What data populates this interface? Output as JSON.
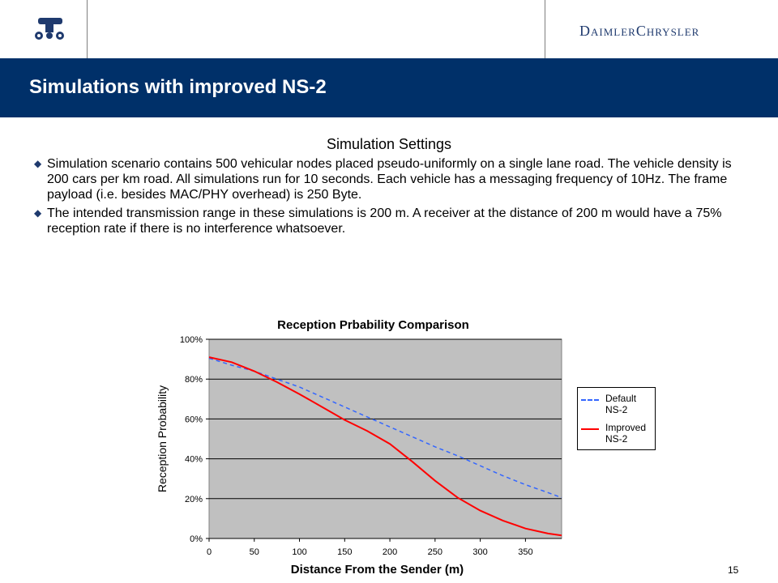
{
  "header": {
    "logo_icon": "vehicle-icon",
    "brand": "DaimlerChrysler"
  },
  "title": "Simulations with improved NS-2",
  "section": {
    "heading": "Simulation Settings",
    "bullets": [
      "Simulation scenario contains 500 vehicular nodes placed pseudo-uniformly on a single lane road. The vehicle density is 200 cars per km road. All simulations run for 10 seconds. Each vehicle has a messaging frequency of 10Hz. The frame payload (i.e. besides MAC/PHY overhead) is 250 Byte.",
      "The intended transmission range in these simulations is 200 m. A receiver at the distance of 200 m would have a 75% reception rate if there is no interference whatsoever."
    ]
  },
  "page_number": "15",
  "colors": {
    "title_band": "#003069",
    "plot_area": "#c0c0c0",
    "default_series": "#3366ff",
    "improved_series": "#ff0000"
  },
  "chart_data": {
    "type": "line",
    "title": "Reception Prbability Comparison",
    "xlabel": "Distance From the Sender (m)",
    "ylabel": "Reception Probability",
    "xlim": [
      0,
      390
    ],
    "ylim": [
      0,
      100
    ],
    "x_ticks": [
      "0",
      "50",
      "100",
      "150",
      "200",
      "250",
      "300",
      "350"
    ],
    "y_ticks": [
      "0%",
      "20%",
      "40%",
      "60%",
      "80%",
      "100%"
    ],
    "grid": true,
    "legend_position": "right",
    "x": [
      0,
      25,
      50,
      75,
      100,
      125,
      150,
      175,
      200,
      225,
      250,
      275,
      300,
      325,
      350,
      375,
      390
    ],
    "series": [
      {
        "name": "Default NS-2",
        "style": "dashed",
        "values": [
          90.5,
          87,
          84,
          80,
          76,
          71,
          66,
          61,
          56,
          51,
          46,
          41.5,
          36.5,
          31.5,
          27,
          23,
          20.5
        ]
      },
      {
        "name": "Improved NS-2",
        "style": "solid",
        "values": [
          91,
          88.5,
          84,
          78.5,
          72.5,
          66,
          59.5,
          54,
          47.5,
          38.5,
          29,
          20.5,
          14,
          9,
          5,
          2.5,
          1.5
        ]
      }
    ]
  }
}
